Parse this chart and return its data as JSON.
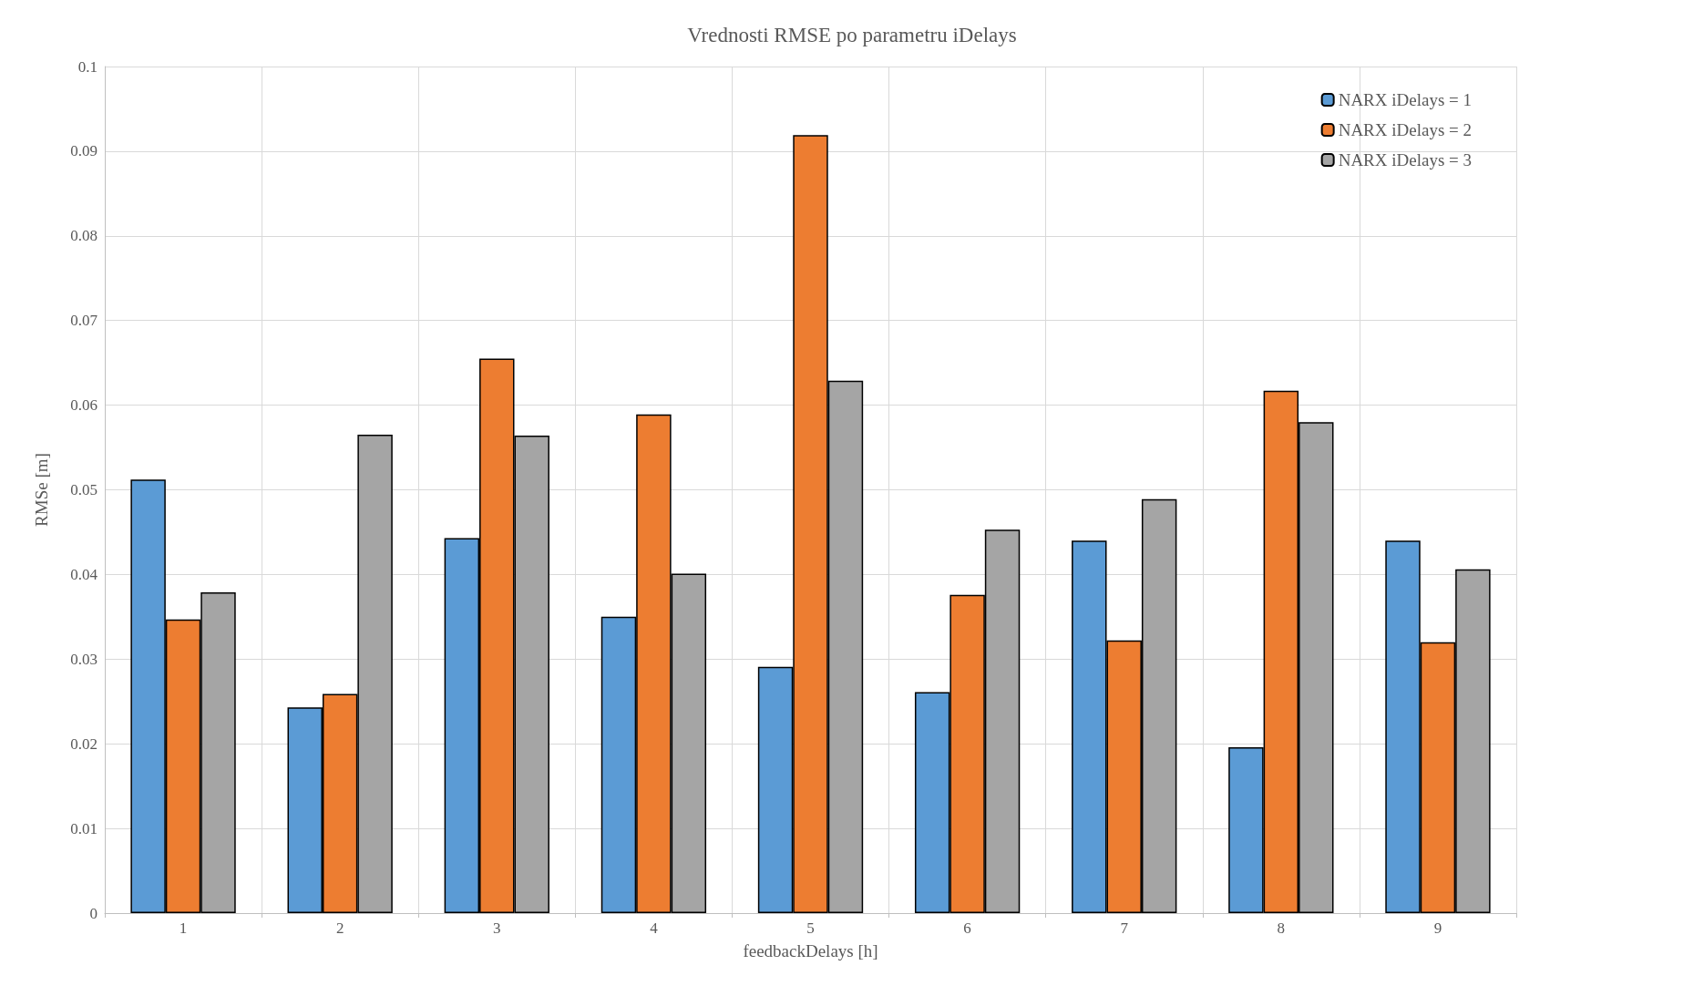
{
  "chart_data": {
    "type": "bar",
    "title": "Vrednosti RMSE po parametru iDelays",
    "xlabel": "feedbackDelays [h]",
    "ylabel": "RMSe [m]",
    "categories": [
      "1",
      "2",
      "3",
      "4",
      "5",
      "6",
      "7",
      "8",
      "9"
    ],
    "series": [
      {
        "name": "NARX iDelays = 1",
        "color": "#5b9bd5",
        "values": [
          0.0512,
          0.0243,
          0.0443,
          0.035,
          0.0291,
          0.0261,
          0.044,
          0.0196,
          0.044
        ]
      },
      {
        "name": "NARX iDelays = 2",
        "color": "#ed7d31",
        "values": [
          0.0347,
          0.0259,
          0.0655,
          0.0589,
          0.0919,
          0.0376,
          0.0322,
          0.0617,
          0.032
        ]
      },
      {
        "name": "NARX iDelays = 3",
        "color": "#a5a5a5",
        "values": [
          0.0379,
          0.0565,
          0.0564,
          0.0401,
          0.0629,
          0.0453,
          0.0489,
          0.058,
          0.0406
        ]
      }
    ],
    "ylim": [
      0,
      0.1
    ],
    "yticks": [
      0,
      0.01,
      0.02,
      0.03,
      0.04,
      0.05,
      0.06,
      0.07,
      0.08,
      0.09,
      0.1
    ],
    "grid": true,
    "legend": "top right"
  }
}
